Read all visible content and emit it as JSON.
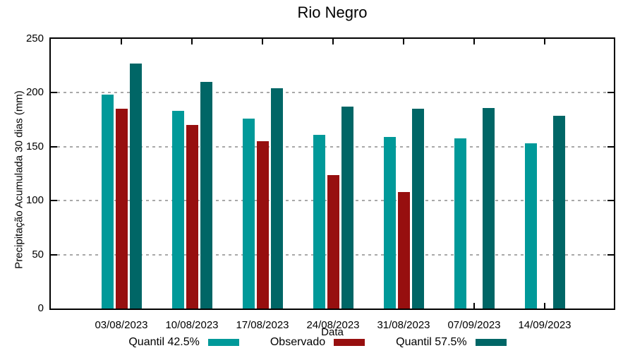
{
  "chart_data": {
    "type": "bar",
    "title": "Rio Negro",
    "xlabel": "Data",
    "ylabel": "Precipitação Acumulada 30 dias (mm)",
    "ylim": [
      0,
      250
    ],
    "yticks": [
      0,
      50,
      100,
      150,
      200,
      250
    ],
    "gridlines": [
      50,
      100,
      150,
      200
    ],
    "grid": "horizontal-dashed",
    "legend_position": "bottom-center",
    "categories": [
      "03/08/2023",
      "10/08/2023",
      "17/08/2023",
      "24/08/2023",
      "31/08/2023",
      "07/09/2023",
      "14/09/2023"
    ],
    "series": [
      {
        "name": "Quantil 42.5%",
        "color": "#009999",
        "values": [
          198,
          183,
          176,
          161,
          159,
          158,
          153
        ]
      },
      {
        "name": "Observado",
        "color": "#970f0f",
        "values": [
          185,
          170,
          155,
          124,
          108,
          null,
          null
        ]
      },
      {
        "name": "Quantil 57.5%",
        "color": "#006666",
        "values": [
          227,
          210,
          204,
          187,
          185,
          186,
          179
        ]
      }
    ],
    "colors": {
      "axis": "#000000",
      "grid": "#a9a9a9",
      "background": "#ffffff"
    }
  }
}
